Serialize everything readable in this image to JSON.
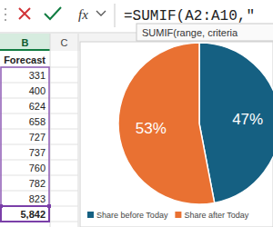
{
  "formula_bar": {
    "function_button": "fx",
    "formula": "=SUMIF(A2:A10,\""
  },
  "tooltip": "SUMIF(range, criteria",
  "sheet": {
    "columns": [
      "B",
      "C"
    ],
    "header": "Forecast",
    "values": [
      331,
      400,
      624,
      658,
      727,
      737,
      760,
      782,
      823
    ],
    "total": {
      "value": 5842,
      "label": "5,842"
    }
  },
  "chart_data": {
    "type": "pie",
    "categories": [
      "Share before Today",
      "Share after Today"
    ],
    "values": [
      47,
      53
    ],
    "value_labels": [
      "47%",
      "53%"
    ],
    "colors": [
      "#156082",
      "#e97132"
    ],
    "data_labels": true,
    "legend": "bottom"
  }
}
